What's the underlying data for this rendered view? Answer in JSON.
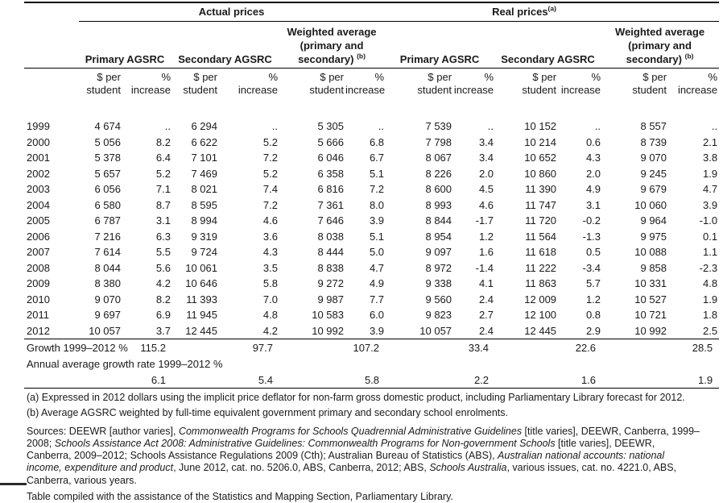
{
  "table": {
    "top_headers": {
      "actual": "Actual prices",
      "real": "Real prices",
      "real_sup": "(a)"
    },
    "group_headers": {
      "primary": "Primary AGSRC",
      "secondary": "Secondary AGSRC",
      "weighted_line1": "Weighted average",
      "weighted_line2": "(primary and",
      "weighted_line3": "secondary)",
      "weighted_sup": "(b)"
    },
    "col_headers": {
      "dollar_line1": "$ per",
      "dollar_line2": "student",
      "pct_line1": "%",
      "pct_line2": "increase"
    },
    "rows": [
      {
        "year": "1999",
        "values": [
          "4 674",
          "..",
          "6 294",
          "..",
          "5 305",
          "..",
          "7 539",
          "..",
          "10 152",
          "..",
          "8 557",
          ".."
        ]
      },
      {
        "year": "2000",
        "values": [
          "5 056",
          "8.2",
          "6 622",
          "5.2",
          "5 666",
          "6.8",
          "7 798",
          "3.4",
          "10 214",
          "0.6",
          "8 739",
          "2.1"
        ]
      },
      {
        "year": "2001",
        "values": [
          "5 378",
          "6.4",
          "7 101",
          "7.2",
          "6 046",
          "6.7",
          "8 067",
          "3.4",
          "10 652",
          "4.3",
          "9 070",
          "3.8"
        ]
      },
      {
        "year": "2002",
        "values": [
          "5 657",
          "5.2",
          "7 469",
          "5.2",
          "6 358",
          "5.1",
          "8 226",
          "2.0",
          "10 860",
          "2.0",
          "9 245",
          "1.9"
        ]
      },
      {
        "year": "2003",
        "values": [
          "6 056",
          "7.1",
          "8 021",
          "7.4",
          "6 816",
          "7.2",
          "8 600",
          "4.5",
          "11 390",
          "4.9",
          "9 679",
          "4.7"
        ]
      },
      {
        "year": "2004",
        "values": [
          "6 580",
          "8.7",
          "8 595",
          "7.2",
          "7 361",
          "8.0",
          "8 993",
          "4.6",
          "11 747",
          "3.1",
          "10 060",
          "3.9"
        ]
      },
      {
        "year": "2005",
        "values": [
          "6 787",
          "3.1",
          "8 994",
          "4.6",
          "7 646",
          "3.9",
          "8 844",
          "-1.7",
          "11 720",
          "-0.2",
          "9 964",
          "-1.0"
        ]
      },
      {
        "year": "2006",
        "values": [
          "7 216",
          "6.3",
          "9 319",
          "3.6",
          "8 038",
          "5.1",
          "8 954",
          "1.2",
          "11 564",
          "-1.3",
          "9 975",
          "0.1"
        ]
      },
      {
        "year": "2007",
        "values": [
          "7 614",
          "5.5",
          "9 724",
          "4.3",
          "8 444",
          "5.0",
          "9 097",
          "1.6",
          "11 618",
          "0.5",
          "10 088",
          "1.1"
        ]
      },
      {
        "year": "2008",
        "values": [
          "8 044",
          "5.6",
          "10 061",
          "3.5",
          "8 838",
          "4.7",
          "8 972",
          "-1.4",
          "11 222",
          "-3.4",
          "9 858",
          "-2.3"
        ]
      },
      {
        "year": "2009",
        "values": [
          "8 380",
          "4.2",
          "10 646",
          "5.8",
          "9 272",
          "4.9",
          "9 338",
          "4.1",
          "11 863",
          "5.7",
          "10 331",
          "4.8"
        ]
      },
      {
        "year": "2010",
        "values": [
          "9 070",
          "8.2",
          "11 393",
          "7.0",
          "9 987",
          "7.7",
          "9 560",
          "2.4",
          "12 009",
          "1.2",
          "10 527",
          "1.9"
        ]
      },
      {
        "year": "2011",
        "values": [
          "9 697",
          "6.9",
          "11 945",
          "4.8",
          "10 583",
          "6.0",
          "9 823",
          "2.7",
          "12 100",
          "0.8",
          "10 721",
          "1.8"
        ]
      },
      {
        "year": "2012",
        "values": [
          "10 057",
          "3.7",
          "12 445",
          "4.2",
          "10 992",
          "3.9",
          "10 057",
          "2.4",
          "12 445",
          "2.9",
          "10 992",
          "2.5"
        ]
      }
    ],
    "growth_row": {
      "label": "Growth 1999–2012  %",
      "values": [
        "115.2",
        "97.7",
        "107.2",
        "33.4",
        "22.6",
        "28.5"
      ]
    },
    "annual_row": {
      "label": "Annual average growth rate  1999–2012 %",
      "values": [
        "6.1",
        "5.4",
        "5.8",
        "2.2",
        "1.6",
        "1.9"
      ]
    }
  },
  "footnotes": {
    "a": "(a) Expressed in 2012 dollars using the implicit price deflator for non-farm gross domestic product, including Parliamentary Library forecast for 2012.",
    "b": "(b) Average AGSRC weighted by full-time equivalent government primary and secondary school enrolments.",
    "sources_segments": [
      {
        "text": "Sources: DEEWR [author varies], ",
        "italic": false
      },
      {
        "text": "Commonwealth Programs for Schools Quadrennial Administrative Guidelines",
        "italic": true
      },
      {
        "text": " [title varies], DEEWR, Canberra, 1999–2008; ",
        "italic": false
      },
      {
        "text": "Schools Assistance Act 2008: Administrative Guidelines: Commonwealth Programs for Non-government Schools",
        "italic": true
      },
      {
        "text": " [title varies], DEEWR, Canberra, 2009–2012; Schools Assistance Regulations 2009 (Cth); Australian Bureau of Statistics (ABS), ",
        "italic": false
      },
      {
        "text": "Australian national accounts: national income, expenditure and product",
        "italic": true
      },
      {
        "text": ", June 2012, cat. no. 5206.0, ABS, Canberra, 2012; ABS, ",
        "italic": false
      },
      {
        "text": "Schools Australia",
        "italic": true
      },
      {
        "text": ", various issues, cat. no. 4221.0, ABS, Canberra, various years.",
        "italic": false
      }
    ],
    "compiled": "Table compiled with the assistance of the Statistics and Mapping Section, Parliamentary Library."
  }
}
